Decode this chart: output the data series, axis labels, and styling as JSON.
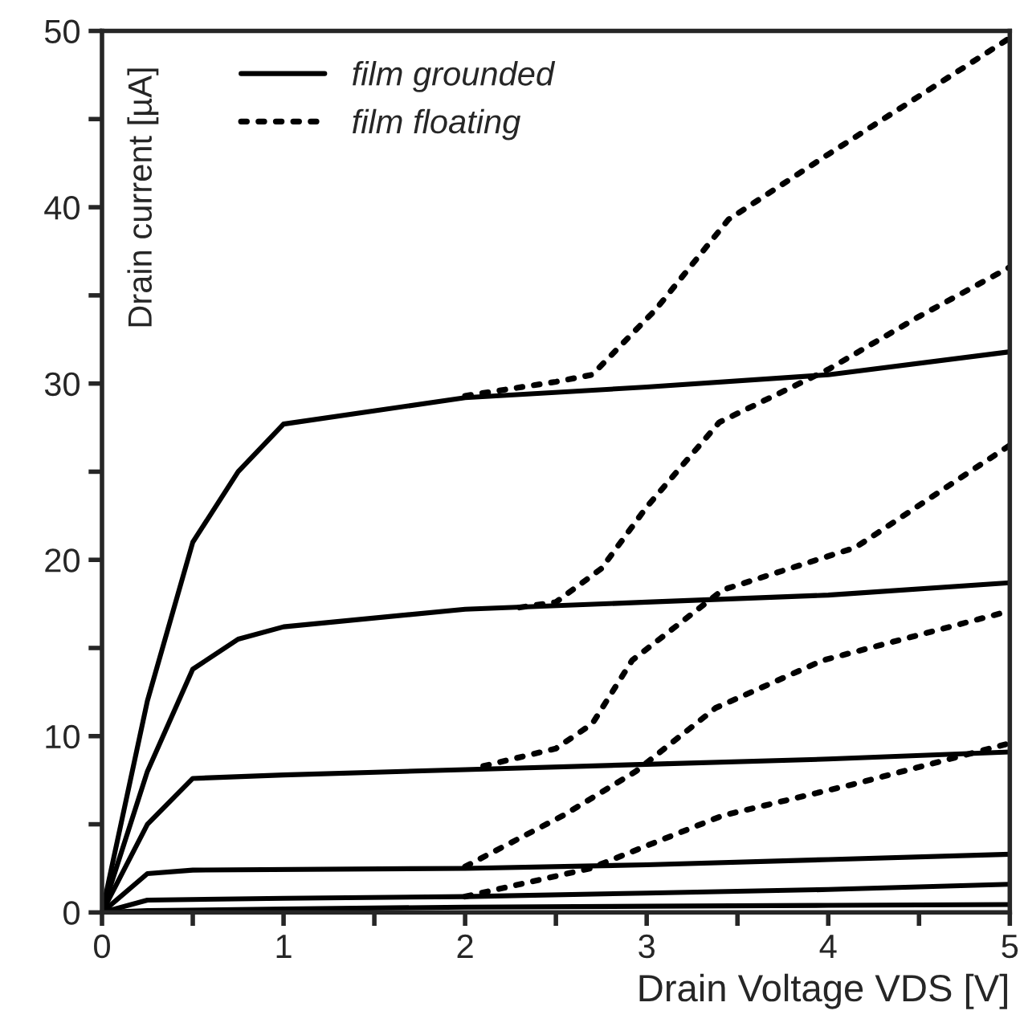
{
  "chart_data": {
    "type": "line",
    "xlabel": "Drain Voltage VDS [V]",
    "ylabel": "Drain current [µA]",
    "xlim": [
      0,
      5
    ],
    "ylim": [
      0,
      50
    ],
    "xticks": [
      0,
      {
        "value": 0.5,
        "label": null
      },
      1,
      {
        "value": 1.5,
        "label": null
      },
      2,
      {
        "value": 2.5,
        "label": null
      },
      3,
      {
        "value": 3.5,
        "label": null
      },
      4,
      {
        "value": 4.5,
        "label": null
      },
      5
    ],
    "yticks": [
      0,
      {
        "value": 5,
        "label": null
      },
      10,
      {
        "value": 15,
        "label": null
      },
      20,
      {
        "value": 25,
        "label": null
      },
      30,
      {
        "value": 35,
        "label": null
      },
      40,
      {
        "value": 45,
        "label": null
      },
      50
    ],
    "legend": "top left",
    "grid": false,
    "marker": "none",
    "series": [
      {
        "name": "film grounded",
        "color": "#000000",
        "line_style": "solid",
        "x": [
          0,
          0.25,
          0.5,
          0.75,
          1,
          2,
          3,
          4,
          5
        ],
        "values": [
          0,
          12,
          21,
          25,
          27.7,
          29.2,
          29.8,
          30.5,
          31.8
        ]
      },
      {
        "color": "#000000",
        "line_style": "solid",
        "x": [
          0,
          0.25,
          0.5,
          0.75,
          1,
          2,
          3,
          4,
          5
        ],
        "values": [
          0,
          8,
          13.8,
          15.5,
          16.2,
          17.2,
          17.6,
          18,
          18.7
        ]
      },
      {
        "color": "#000000",
        "line_style": "solid",
        "x": [
          0,
          0.25,
          0.5,
          1,
          2,
          3,
          4,
          5
        ],
        "values": [
          0,
          5,
          7.6,
          7.8,
          8.1,
          8.4,
          8.7,
          9.1
        ]
      },
      {
        "color": "#000000",
        "line_style": "solid",
        "x": [
          0,
          0.25,
          0.5,
          2,
          3,
          4,
          5
        ],
        "values": [
          0,
          2.2,
          2.4,
          2.5,
          2.7,
          3,
          3.3
        ]
      },
      {
        "color": "#000000",
        "line_style": "solid",
        "x": [
          0,
          0.25,
          1,
          2,
          3,
          4,
          5
        ],
        "values": [
          0,
          0.7,
          0.8,
          0.9,
          1.1,
          1.3,
          1.6
        ]
      },
      {
        "color": "#000000",
        "line_style": "solid",
        "x": [
          0,
          0.25,
          1,
          2,
          3,
          4,
          5
        ],
        "values": [
          0,
          0.1,
          0.2,
          0.3,
          0.35,
          0.4,
          0.45
        ]
      },
      {
        "name": "film floating",
        "color": "#000000",
        "line_style": "dotted",
        "x": [
          2,
          2.5,
          2.7,
          3.05,
          3.45,
          4,
          4.5,
          5
        ],
        "values": [
          29.3,
          30.1,
          30.5,
          34.2,
          39.3,
          43,
          46.3,
          49.6
        ]
      },
      {
        "color": "#000000",
        "line_style": "dotted",
        "x": [
          2.3,
          2.5,
          2.75,
          3,
          3.4,
          4,
          4.5,
          5
        ],
        "values": [
          17.3,
          17.6,
          19.5,
          23,
          27.8,
          30.8,
          33.8,
          36.6
        ]
      },
      {
        "color": "#000000",
        "line_style": "dotted",
        "x": [
          2.1,
          2.5,
          2.7,
          2.92,
          3.42,
          4.15,
          5
        ],
        "values": [
          8.3,
          9.3,
          10.7,
          14.3,
          18.3,
          20.7,
          26.5
        ]
      },
      {
        "color": "#000000",
        "line_style": "dotted",
        "x": [
          2,
          2.54,
          2.94,
          3.38,
          3.97,
          5
        ],
        "values": [
          2.6,
          5.5,
          8,
          11.6,
          14.3,
          17.1
        ]
      },
      {
        "color": "#000000",
        "line_style": "dotted",
        "x": [
          2,
          2.69,
          2.98,
          3.42,
          4.15,
          5
        ],
        "values": [
          0.9,
          2.5,
          3.7,
          5.5,
          7.3,
          9.6
        ]
      }
    ]
  }
}
